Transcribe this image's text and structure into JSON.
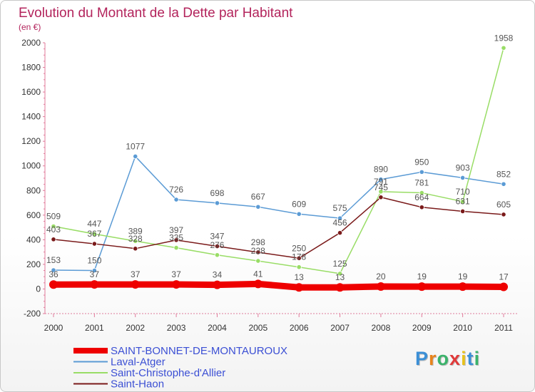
{
  "chart_data": {
    "type": "line",
    "title": "Evolution du Montant de la Dette par Habitant",
    "subtitle": "(en €)",
    "categories": [
      "2000",
      "2001",
      "2002",
      "2003",
      "2004",
      "2005",
      "2006",
      "2007",
      "2008",
      "2009",
      "2010",
      "2011"
    ],
    "y_ticks": [
      -200,
      0,
      200,
      400,
      600,
      800,
      1000,
      1200,
      1400,
      1600,
      1800,
      2000
    ],
    "ylim": [
      -200,
      2000
    ],
    "grid": false,
    "legend_position": "bottom-left",
    "series": [
      {
        "name": "SAINT-BONNET-DE-MONTAUROUX",
        "color": "#ee0000",
        "values": [
          36,
          37,
          37,
          37,
          34,
          41,
          13,
          13,
          20,
          19,
          19,
          17
        ],
        "labels": [
          "36",
          "37",
          "37",
          "37",
          "34",
          "41",
          "13",
          "13",
          "20",
          "19",
          "19",
          "17"
        ]
      },
      {
        "name": "Laval-Atger",
        "color": "#5b9bd5",
        "values": [
          153,
          150,
          1077,
          726,
          698,
          667,
          609,
          575,
          890,
          950,
          903,
          852
        ],
        "labels": [
          "153",
          "150",
          "1077",
          "726",
          "698",
          "667",
          "609",
          "575",
          "890",
          "950",
          "903",
          "852"
        ]
      },
      {
        "name": "Saint-Christophe-d'Allier",
        "color": "#99dd66",
        "values": [
          509,
          447,
          389,
          335,
          276,
          228,
          178,
          125,
          791,
          781,
          710,
          1958
        ],
        "labels": [
          "509",
          "447",
          "389",
          "335",
          "276",
          "228",
          "178",
          "125",
          "791",
          "781",
          "710",
          "1958"
        ]
      },
      {
        "name": "Saint-Haon",
        "color": "#7a1a1a",
        "values": [
          403,
          367,
          328,
          397,
          347,
          298,
          250,
          456,
          745,
          664,
          631,
          605
        ],
        "labels": [
          "403",
          "367",
          "328",
          "397",
          "347",
          "298",
          "250",
          "456",
          "745",
          "664",
          "631",
          "605"
        ]
      }
    ]
  },
  "logo": {
    "text": "Proxiti",
    "letters": [
      "P",
      "r",
      "o",
      "x",
      "i",
      "t",
      "i"
    ],
    "colors": [
      "#3b8fd6",
      "#e8831b",
      "#3bb36b",
      "#e03a3a",
      "#e8c21b",
      "#3b8fd6",
      "#3bb36b"
    ]
  }
}
